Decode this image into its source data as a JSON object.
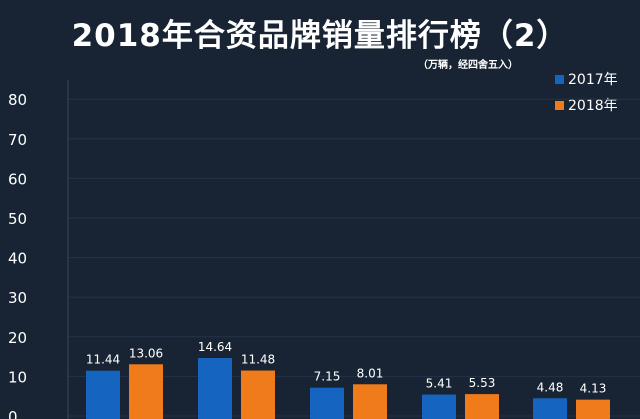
{
  "chart_data": {
    "type": "bar",
    "title": "2018年合资品牌销量排行榜（2）",
    "unit_note": "（万辆，经四舍五入）",
    "categories": [
      "",
      "",
      "",
      "",
      ""
    ],
    "series": [
      {
        "name": "2017年",
        "color": "#1565c0",
        "values": [
          11.44,
          14.64,
          7.15,
          5.41,
          4.48
        ]
      },
      {
        "name": "2018年",
        "color": "#f07b1a",
        "values": [
          13.06,
          11.48,
          8.01,
          5.53,
          4.13
        ]
      }
    ],
    "ylim": [
      0,
      90
    ],
    "yticks": [
      0,
      10,
      20,
      30,
      40,
      50,
      60,
      70,
      80
    ],
    "grid": true,
    "legend_position": "top-right",
    "xlabel": "",
    "ylabel": ""
  }
}
